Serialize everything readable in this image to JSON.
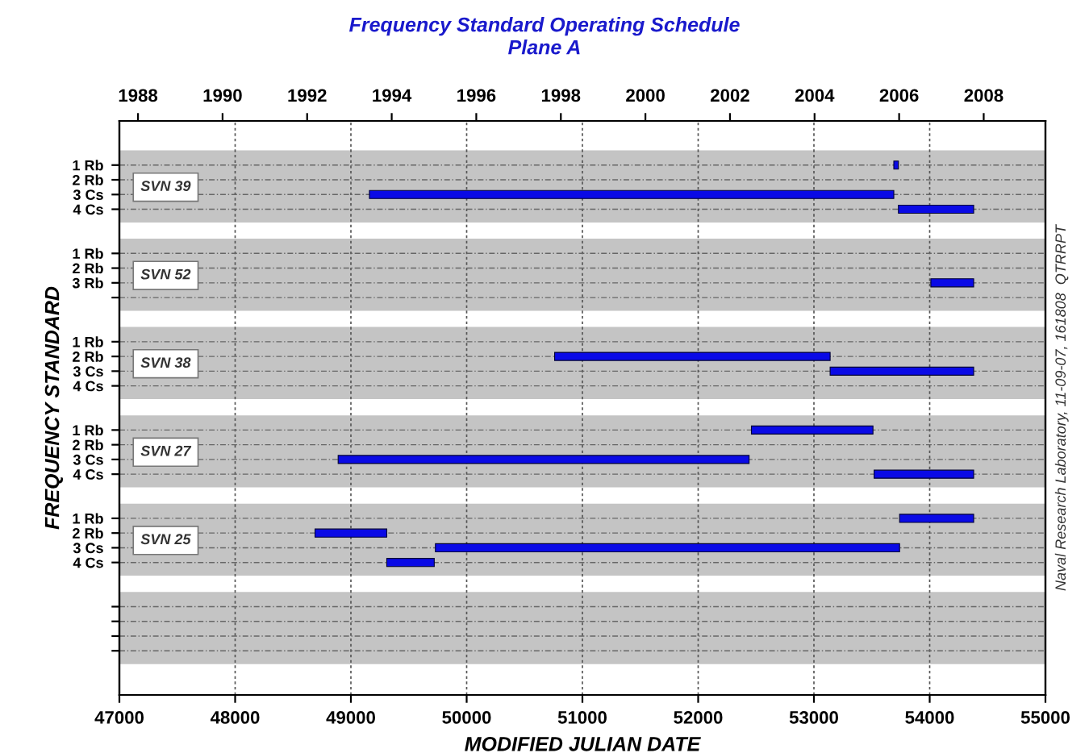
{
  "chart_data": {
    "type": "bar",
    "orientation": "horizontal",
    "title": "Frequency Standard Operating Schedule",
    "subtitle": "Plane A",
    "xlabel": "MODIFIED JULIAN DATE",
    "ylabel": "FREQUENCY STANDARD",
    "categories": [
      "1 Rb",
      "2 Rb",
      "3 Cs",
      "4 Cs",
      "1 Rb",
      "2 Rb",
      "3 Rb",
      null,
      "1 Rb",
      "2 Rb",
      "3 Cs",
      "4 Cs",
      "1 Rb",
      "2 Rb",
      "3 Cs",
      "4 Cs",
      "1 Rb",
      "2 Rb",
      "3 Cs",
      "4 Cs",
      null,
      null,
      null,
      null
    ],
    "base": [
      53690,
      null,
      49160,
      53730,
      null,
      null,
      54010,
      null,
      null,
      50760,
      53140,
      null,
      52460,
      null,
      48890,
      53520,
      53740,
      48690,
      49730,
      49310,
      null,
      null,
      null,
      null
    ],
    "values": [
      40,
      null,
      4530,
      650,
      null,
      null,
      370,
      null,
      null,
      2380,
      1240,
      null,
      1050,
      null,
      3550,
      860,
      640,
      620,
      4010,
      410,
      null,
      null,
      null,
      null
    ],
    "color": "#0a0ae6",
    "xlim": [
      47000,
      55000
    ],
    "xticks": [
      47000,
      48000,
      49000,
      50000,
      51000,
      52000,
      53000,
      54000,
      55000
    ],
    "x2lim": [
      1987.56,
      2009.46
    ],
    "x2ticks": [
      1988,
      1990,
      1992,
      1994,
      1996,
      1998,
      2000,
      2002,
      2004,
      2006,
      2008
    ],
    "grid": true,
    "annotations": [
      "SVN 39",
      "SVN 52",
      "SVN 38",
      "SVN 27",
      "SVN 25",
      "Naval Research Laboratory, 11-09-07, 161808  QTRRPT"
    ]
  }
}
